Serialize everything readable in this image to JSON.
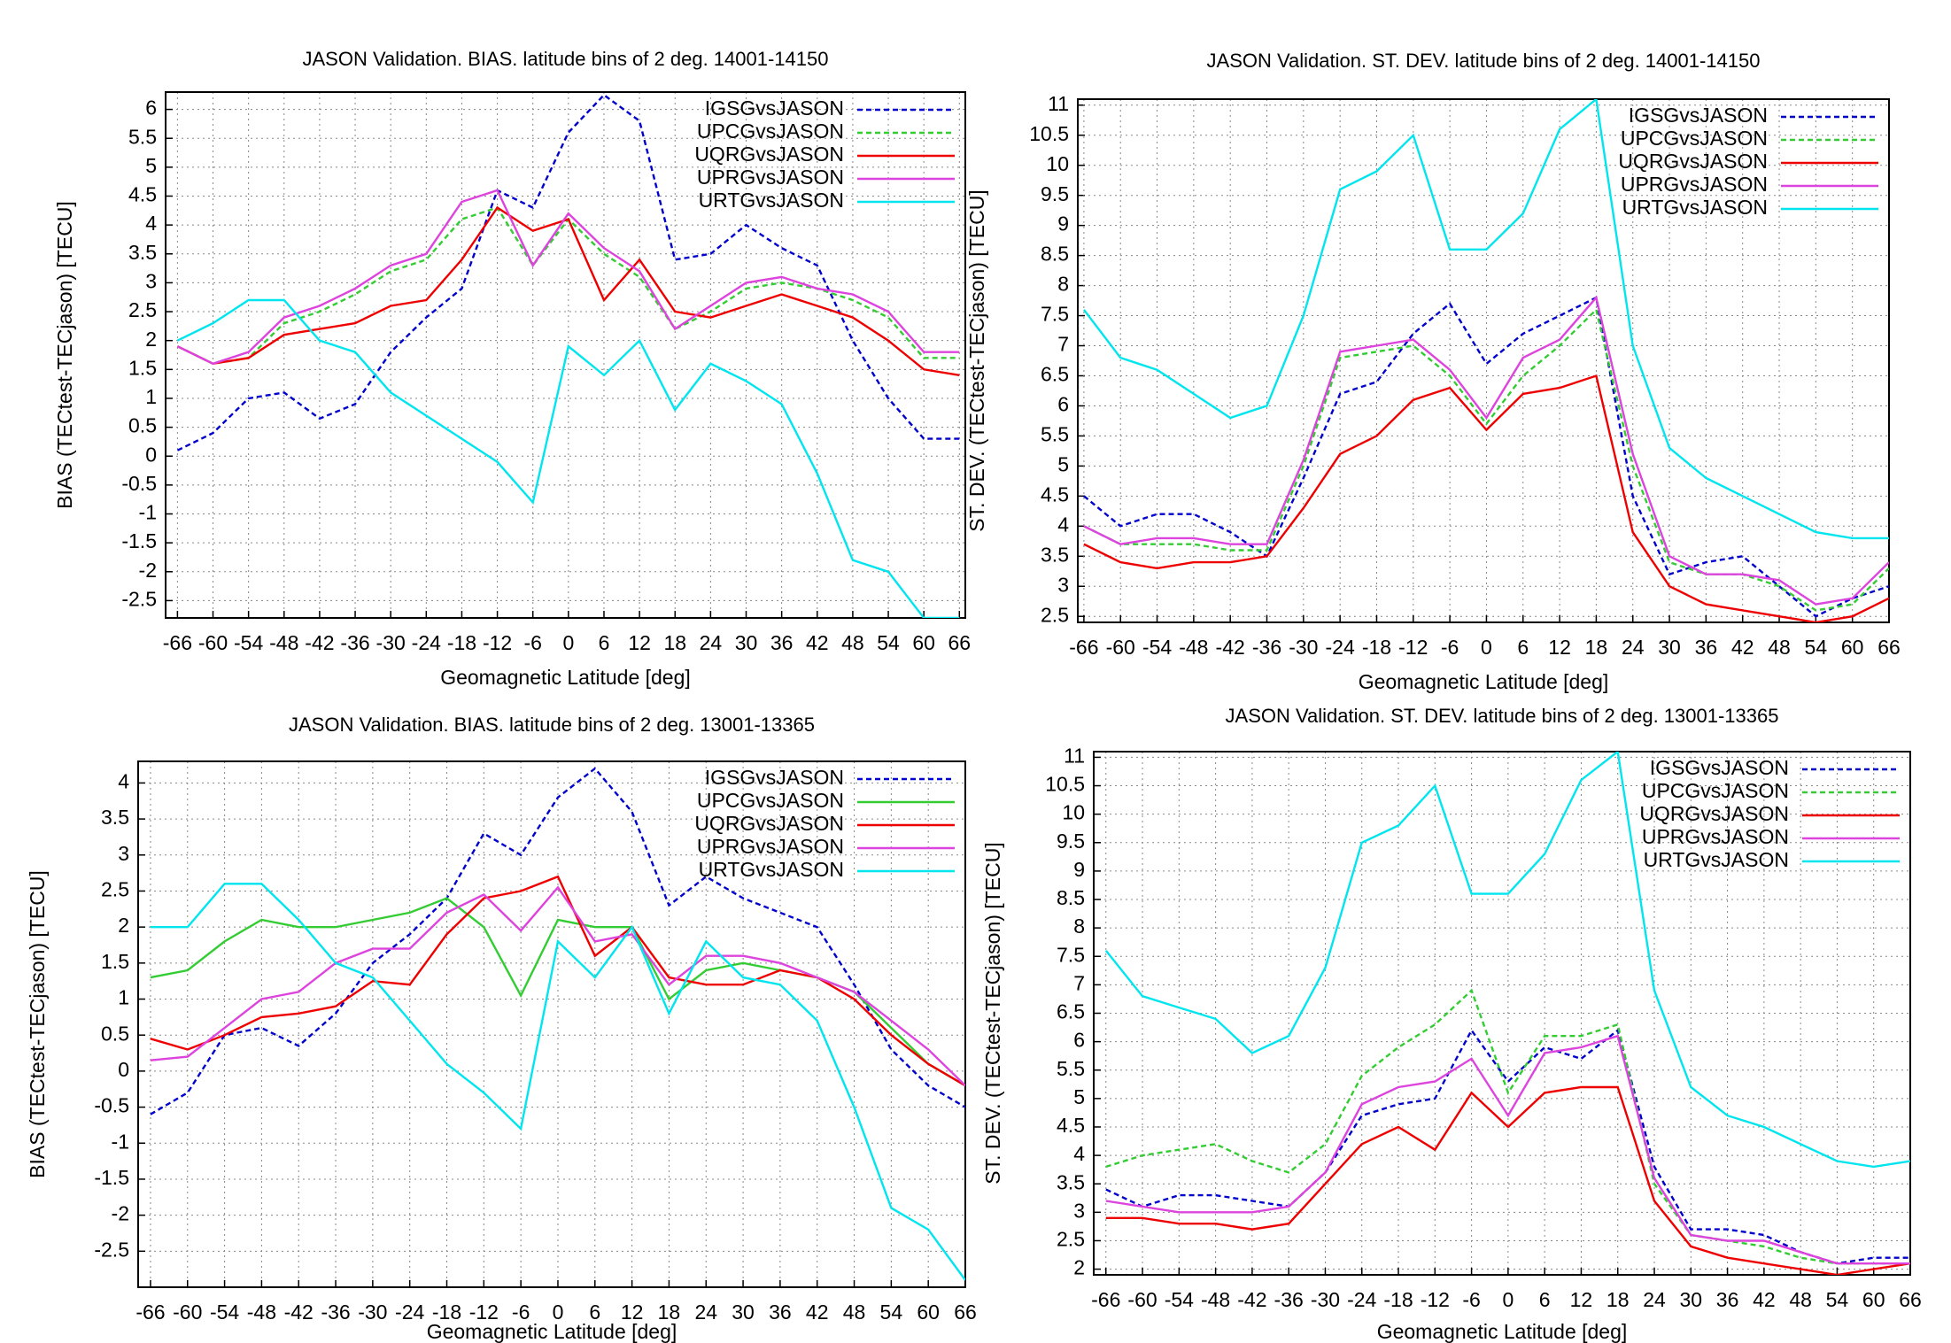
{
  "chart_data": [
    {
      "type": "line",
      "title": "JASON Validation. BIAS. latitude bins of 2 deg. 14001-14150",
      "xlabel": "Geomagnetic Latitude [deg]",
      "ylabel": "BIAS (TECtest-TECjason) [TECU]",
      "x": [
        -66,
        -60,
        -54,
        -48,
        -42,
        -36,
        -30,
        -24,
        -18,
        -12,
        -6,
        0,
        6,
        12,
        18,
        24,
        30,
        36,
        42,
        48,
        54,
        60,
        66
      ],
      "xlim": [
        -68,
        67
      ],
      "xticks": [
        -66,
        -60,
        -54,
        -48,
        -42,
        -36,
        -30,
        -24,
        -18,
        -12,
        -6,
        0,
        6,
        12,
        18,
        24,
        30,
        36,
        42,
        48,
        54,
        60,
        66
      ],
      "ylim": [
        -2.8,
        6.3
      ],
      "yticks": [
        -2.5,
        -2,
        -1.5,
        -1,
        -0.5,
        0,
        0.5,
        1,
        1.5,
        2,
        2.5,
        3,
        3.5,
        4,
        4.5,
        5,
        5.5,
        6
      ],
      "grid": true,
      "legend": "upper right",
      "series": [
        {
          "name": "IGSGvsJASON",
          "color": "#0000cc",
          "dashed": true,
          "values": [
            0.1,
            0.4,
            1.0,
            1.1,
            0.65,
            0.9,
            1.8,
            2.4,
            2.9,
            4.6,
            4.3,
            5.6,
            6.25,
            5.8,
            3.4,
            3.5,
            4.0,
            3.6,
            3.3,
            2.0,
            1.0,
            0.3,
            0.3
          ]
        },
        {
          "name": "UPCGvsJASON",
          "color": "#33cc33",
          "dashed": true,
          "values": [
            1.9,
            1.6,
            1.7,
            2.3,
            2.5,
            2.8,
            3.2,
            3.4,
            4.1,
            4.3,
            3.3,
            4.1,
            3.5,
            3.1,
            2.2,
            2.5,
            2.9,
            3.0,
            2.9,
            2.7,
            2.4,
            1.7,
            1.7
          ]
        },
        {
          "name": "UQRGvsJASON",
          "color": "#ee0000",
          "dashed": false,
          "values": [
            1.9,
            1.6,
            1.7,
            2.1,
            2.2,
            2.3,
            2.6,
            2.7,
            3.4,
            4.3,
            3.9,
            4.1,
            2.7,
            3.4,
            2.5,
            2.4,
            2.6,
            2.8,
            2.6,
            2.4,
            2.0,
            1.5,
            1.4
          ]
        },
        {
          "name": "UPRGvsJASON",
          "color": "#dd44dd",
          "dashed": false,
          "values": [
            1.9,
            1.6,
            1.8,
            2.4,
            2.6,
            2.9,
            3.3,
            3.5,
            4.4,
            4.6,
            3.3,
            4.2,
            3.6,
            3.2,
            2.2,
            2.6,
            3.0,
            3.1,
            2.9,
            2.8,
            2.5,
            1.8,
            1.8
          ]
        },
        {
          "name": "URTGvsJASON",
          "color": "#00e5ee",
          "dashed": false,
          "values": [
            2.0,
            2.3,
            2.7,
            2.7,
            2.0,
            1.8,
            1.1,
            0.7,
            0.3,
            -0.1,
            -0.8,
            1.9,
            1.4,
            2.0,
            0.8,
            1.6,
            1.3,
            0.9,
            -0.3,
            -1.8,
            -2.0,
            -2.8,
            -2.8
          ]
        }
      ]
    },
    {
      "type": "line",
      "title": "JASON Validation. ST. DEV. latitude bins of 2 deg. 14001-14150",
      "xlabel": "Geomagnetic Latitude [deg]",
      "ylabel": "ST. DEV. (TECtest-TECjason) [TECU]",
      "x": [
        -66,
        -60,
        -54,
        -48,
        -42,
        -36,
        -30,
        -24,
        -18,
        -12,
        -6,
        0,
        6,
        12,
        18,
        24,
        30,
        36,
        42,
        48,
        54,
        60,
        66
      ],
      "xlim": [
        -67,
        66
      ],
      "xticks": [
        -66,
        -60,
        -54,
        -48,
        -42,
        -36,
        -30,
        -24,
        -18,
        -12,
        -6,
        0,
        6,
        12,
        18,
        24,
        30,
        36,
        42,
        48,
        54,
        60,
        66
      ],
      "ylim": [
        2.4,
        11.1
      ],
      "yticks": [
        2.5,
        3,
        3.5,
        4,
        4.5,
        5,
        5.5,
        6,
        6.5,
        7,
        7.5,
        8,
        8.5,
        9,
        9.5,
        10,
        10.5,
        11
      ],
      "grid": true,
      "legend": "upper right",
      "series": [
        {
          "name": "IGSGvsJASON",
          "color": "#0000cc",
          "dashed": true,
          "values": [
            4.5,
            4.0,
            4.2,
            4.2,
            3.9,
            3.5,
            4.8,
            6.2,
            6.4,
            7.2,
            7.7,
            6.7,
            7.2,
            7.5,
            7.8,
            4.5,
            3.2,
            3.4,
            3.5,
            3.0,
            2.5,
            2.8,
            3.0
          ]
        },
        {
          "name": "UPCGvsJASON",
          "color": "#33cc33",
          "dashed": true,
          "values": [
            4.0,
            3.7,
            3.7,
            3.7,
            3.6,
            3.6,
            5.0,
            6.8,
            6.9,
            7.0,
            6.5,
            5.7,
            6.5,
            7.0,
            7.6,
            5.0,
            3.4,
            3.2,
            3.2,
            3.0,
            2.6,
            2.7,
            3.3
          ]
        },
        {
          "name": "UQRGvsJASON",
          "color": "#ee0000",
          "dashed": false,
          "values": [
            3.7,
            3.4,
            3.3,
            3.4,
            3.4,
            3.5,
            4.3,
            5.2,
            5.5,
            6.1,
            6.3,
            5.6,
            6.2,
            6.3,
            6.5,
            3.9,
            3.0,
            2.7,
            2.6,
            2.5,
            2.4,
            2.5,
            2.8
          ]
        },
        {
          "name": "UPRGvsJASON",
          "color": "#dd44dd",
          "dashed": false,
          "values": [
            4.0,
            3.7,
            3.8,
            3.8,
            3.7,
            3.7,
            5.1,
            6.9,
            7.0,
            7.1,
            6.6,
            5.8,
            6.8,
            7.1,
            7.8,
            5.2,
            3.5,
            3.2,
            3.2,
            3.1,
            2.7,
            2.8,
            3.4
          ]
        },
        {
          "name": "URTGvsJASON",
          "color": "#00e5ee",
          "dashed": false,
          "values": [
            7.6,
            6.8,
            6.6,
            6.2,
            5.8,
            6.0,
            7.5,
            9.6,
            9.9,
            10.5,
            8.6,
            8.6,
            9.2,
            10.6,
            11.1,
            7.0,
            5.3,
            4.8,
            4.5,
            4.2,
            3.9,
            3.8,
            3.8
          ]
        }
      ]
    },
    {
      "type": "line",
      "title": "JASON Validation. BIAS. latitude bins of 2 deg. 13001-13365",
      "xlabel": "Geomagnetic Latitude [deg]",
      "ylabel": "BIAS (TECtest-TECjason) [TECU]",
      "x": [
        -66,
        -60,
        -54,
        -48,
        -42,
        -36,
        -30,
        -24,
        -18,
        -12,
        -6,
        0,
        6,
        12,
        18,
        24,
        30,
        36,
        42,
        48,
        54,
        60,
        66
      ],
      "xlim": [
        -68,
        66
      ],
      "xticks": [
        -66,
        -60,
        -54,
        -48,
        -42,
        -36,
        -30,
        -24,
        -18,
        -12,
        -6,
        0,
        6,
        12,
        18,
        24,
        30,
        36,
        42,
        48,
        54,
        60,
        66
      ],
      "ylim": [
        -3.0,
        4.3
      ],
      "yticks": [
        -2.5,
        -2,
        -1.5,
        -1,
        -0.5,
        0,
        0.5,
        1,
        1.5,
        2,
        2.5,
        3,
        3.5,
        4
      ],
      "grid": true,
      "legend": "upper right",
      "series": [
        {
          "name": "IGSGvsJASON",
          "color": "#0000cc",
          "dashed": true,
          "values": [
            -0.6,
            -0.3,
            0.5,
            0.6,
            0.35,
            0.8,
            1.5,
            1.9,
            2.4,
            3.3,
            3.0,
            3.8,
            4.2,
            3.6,
            2.3,
            2.7,
            2.4,
            2.2,
            2.0,
            1.2,
            0.3,
            -0.2,
            -0.5
          ]
        },
        {
          "name": "UPCGvsJASON",
          "color": "#33cc33",
          "dashed": false,
          "values": [
            1.3,
            1.4,
            1.8,
            2.1,
            2.0,
            2.0,
            2.1,
            2.2,
            2.4,
            2.0,
            1.05,
            2.1,
            2.0,
            2.0,
            1.0,
            1.4,
            1.5,
            1.4,
            1.3,
            1.1,
            0.6,
            0.1,
            -0.2
          ]
        },
        {
          "name": "UQRGvsJASON",
          "color": "#ee0000",
          "dashed": false,
          "values": [
            0.45,
            0.3,
            0.5,
            0.75,
            0.8,
            0.9,
            1.25,
            1.2,
            1.9,
            2.4,
            2.5,
            2.7,
            1.6,
            2.0,
            1.3,
            1.2,
            1.2,
            1.4,
            1.3,
            1.0,
            0.5,
            0.1,
            -0.2
          ]
        },
        {
          "name": "UPRGvsJASON",
          "color": "#dd44dd",
          "dashed": false,
          "values": [
            0.15,
            0.2,
            0.6,
            1.0,
            1.1,
            1.5,
            1.7,
            1.7,
            2.2,
            2.45,
            1.95,
            2.55,
            1.8,
            1.9,
            1.2,
            1.6,
            1.6,
            1.5,
            1.3,
            1.1,
            0.7,
            0.3,
            -0.2
          ]
        },
        {
          "name": "URTGvsJASON",
          "color": "#00e5ee",
          "dashed": false,
          "values": [
            2.0,
            2.0,
            2.6,
            2.6,
            2.1,
            1.5,
            1.3,
            0.7,
            0.1,
            -0.3,
            -0.8,
            1.8,
            1.3,
            2.0,
            0.8,
            1.8,
            1.3,
            1.2,
            0.7,
            -0.5,
            -1.9,
            -2.2,
            -2.9
          ]
        }
      ]
    },
    {
      "type": "line",
      "title": "JASON Validation. ST. DEV. latitude bins of 2 deg. 13001-13365",
      "xlabel": "Geomagnetic Latitude [deg]",
      "ylabel": "ST. DEV. (TECtest-TECjason) [TECU]",
      "x": [
        -66,
        -60,
        -54,
        -48,
        -42,
        -36,
        -30,
        -24,
        -18,
        -12,
        -6,
        0,
        6,
        12,
        18,
        24,
        30,
        36,
        42,
        48,
        54,
        60,
        66
      ],
      "xlim": [
        -68,
        66
      ],
      "xticks": [
        -66,
        -60,
        -54,
        -48,
        -42,
        -36,
        -30,
        -24,
        -18,
        -12,
        -6,
        0,
        6,
        12,
        18,
        24,
        30,
        36,
        42,
        48,
        54,
        60,
        66
      ],
      "ylim": [
        1.9,
        11.1
      ],
      "yticks": [
        2,
        2.5,
        3,
        3.5,
        4,
        4.5,
        5,
        5.5,
        6,
        6.5,
        7,
        7.5,
        8,
        8.5,
        9,
        9.5,
        10,
        10.5,
        11
      ],
      "grid": true,
      "legend": "upper right",
      "series": [
        {
          "name": "IGSGvsJASON",
          "color": "#0000cc",
          "dashed": true,
          "values": [
            3.4,
            3.1,
            3.3,
            3.3,
            3.2,
            3.1,
            3.7,
            4.7,
            4.9,
            5.0,
            6.2,
            5.3,
            5.9,
            5.7,
            6.2,
            3.8,
            2.7,
            2.7,
            2.6,
            2.3,
            2.1,
            2.2,
            2.2
          ]
        },
        {
          "name": "UPCGvsJASON",
          "color": "#33cc33",
          "dashed": true,
          "values": [
            3.8,
            4.0,
            4.1,
            4.2,
            3.9,
            3.7,
            4.2,
            5.4,
            5.9,
            6.3,
            6.9,
            5.1,
            6.1,
            6.1,
            6.3,
            3.5,
            2.6,
            2.5,
            2.4,
            2.2,
            2.1,
            2.1,
            2.1
          ]
        },
        {
          "name": "UQRGvsJASON",
          "color": "#ee0000",
          "dashed": false,
          "values": [
            2.9,
            2.9,
            2.8,
            2.8,
            2.7,
            2.8,
            3.5,
            4.2,
            4.5,
            4.1,
            5.1,
            4.5,
            5.1,
            5.2,
            5.2,
            3.2,
            2.4,
            2.2,
            2.1,
            2.0,
            1.9,
            2.0,
            2.1
          ]
        },
        {
          "name": "UPRGvsJASON",
          "color": "#dd44dd",
          "dashed": false,
          "values": [
            3.2,
            3.1,
            3.0,
            3.0,
            3.0,
            3.1,
            3.7,
            4.9,
            5.2,
            5.3,
            5.7,
            4.7,
            5.8,
            5.9,
            6.1,
            3.6,
            2.6,
            2.5,
            2.5,
            2.3,
            2.1,
            2.1,
            2.1
          ]
        },
        {
          "name": "URTGvsJASON",
          "color": "#00e5ee",
          "dashed": false,
          "values": [
            7.6,
            6.8,
            6.6,
            6.4,
            5.8,
            6.1,
            7.3,
            9.5,
            9.8,
            10.5,
            8.6,
            8.6,
            9.3,
            10.6,
            11.1,
            6.9,
            5.2,
            4.7,
            4.5,
            4.2,
            3.9,
            3.8,
            3.9
          ]
        }
      ]
    }
  ]
}
